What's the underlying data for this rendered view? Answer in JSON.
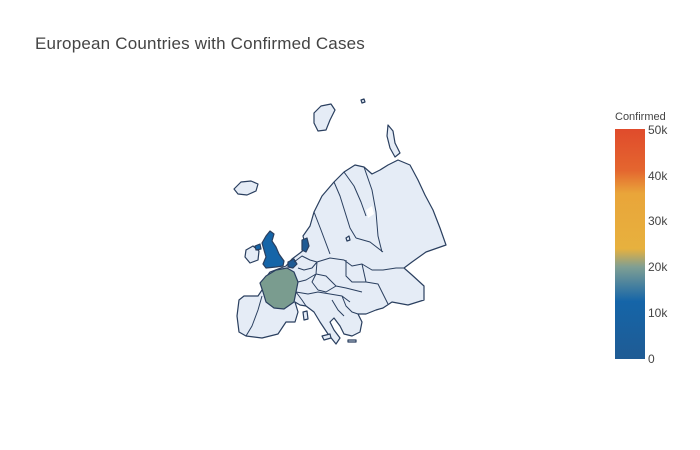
{
  "title": "European Countries with Confirmed Cases",
  "colorbar": {
    "title": "Confirmed",
    "ticks": [
      "50k",
      "40k",
      "30k",
      "20k",
      "10k",
      "0"
    ],
    "range": [
      0,
      50000
    ],
    "colorscale": [
      "#1f5b94",
      "#1565a8",
      "#7f9f93",
      "#e7b13e",
      "#e9a53a",
      "#e04b2c"
    ]
  },
  "chart_data": {
    "type": "choropleth",
    "scope": "europe",
    "color_variable": "Confirmed",
    "highlighted": [
      {
        "region": "united-kingdom",
        "fill": "#1565a8"
      },
      {
        "region": "france",
        "fill": "#7a9c8f"
      },
      {
        "region": "denmark",
        "fill": "#1f5b94"
      },
      {
        "region": "netherlands",
        "fill": "#1f5b94"
      }
    ]
  }
}
